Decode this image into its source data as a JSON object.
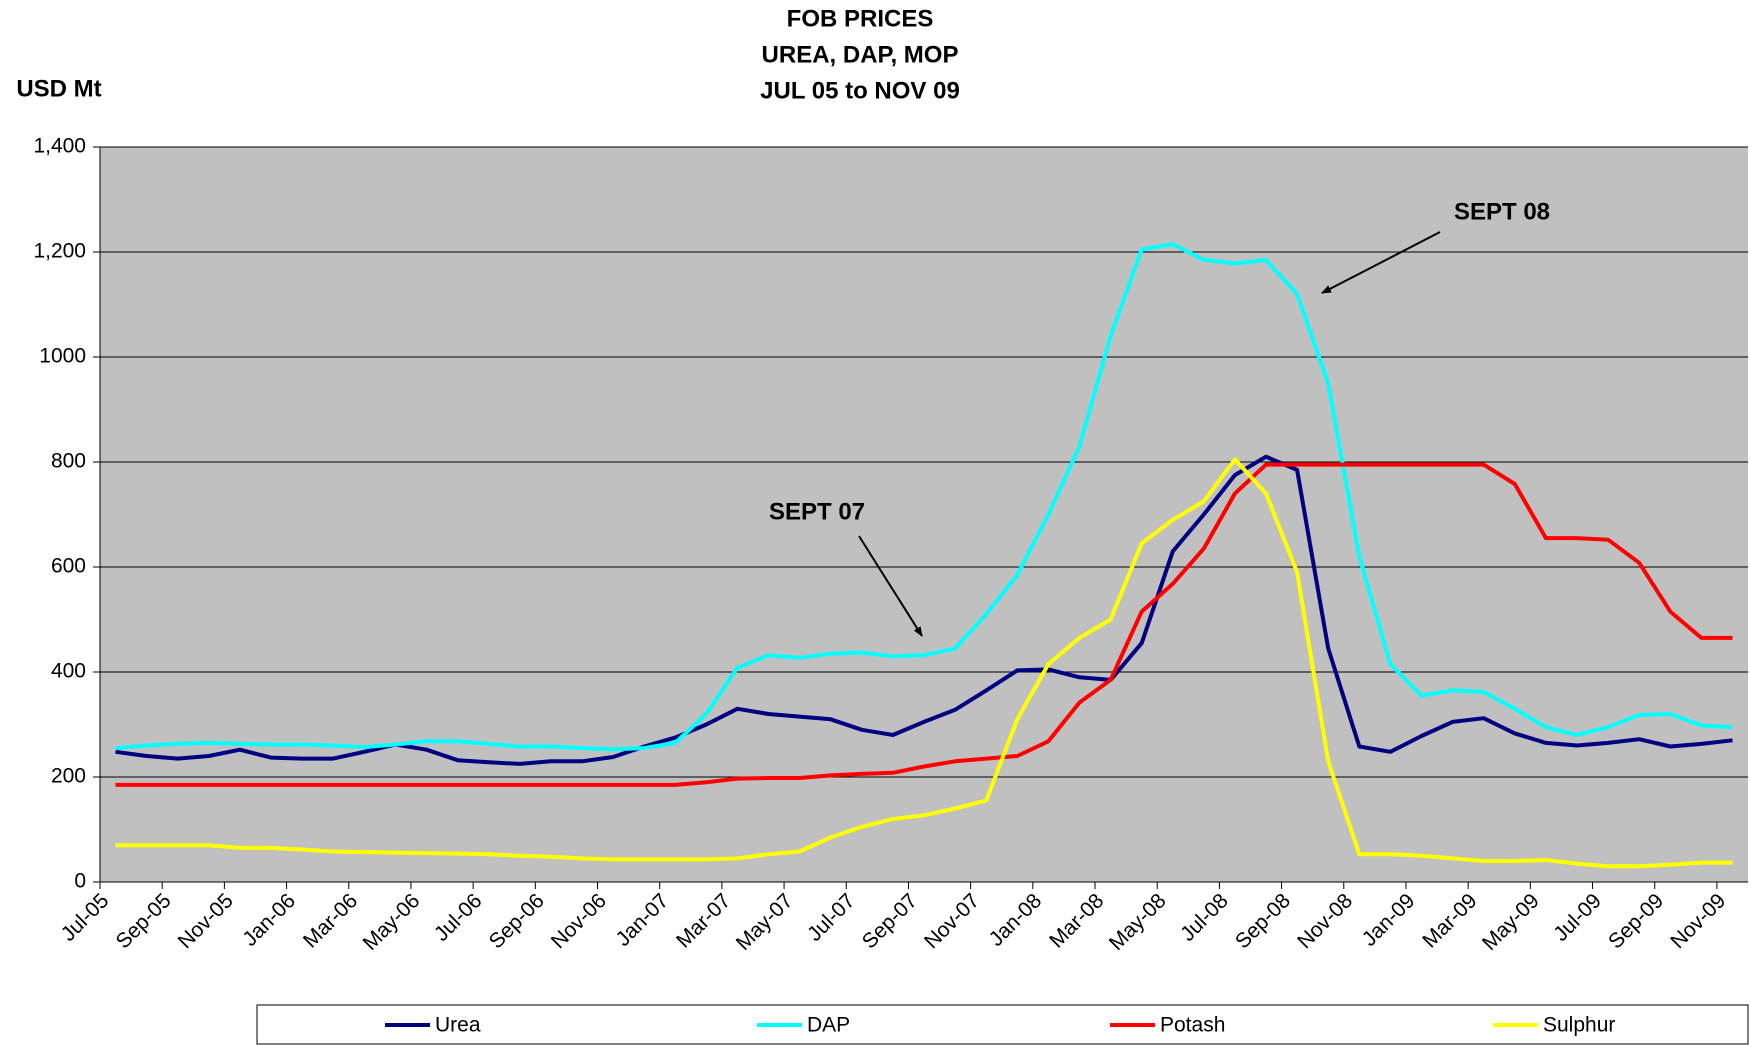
{
  "chart_data": {
    "type": "line",
    "title": [
      "FOB PRICES",
      "UREA, DAP, MOP",
      "JUL 05 to NOV 09"
    ],
    "y_label": "USD Mt",
    "annotations": [
      "SEPT 08",
      "SEPT 07"
    ],
    "categories": [
      "Jul-05",
      null,
      "Sep-05",
      null,
      "Nov-05",
      null,
      "Jan-06",
      null,
      "Mar-06",
      null,
      "May-06",
      null,
      "Jul-06",
      null,
      "Sep-06",
      null,
      "Nov-06",
      null,
      "Jan-07",
      null,
      "Mar-07",
      null,
      "May-07",
      null,
      "Jul-07",
      null,
      "Sep-07",
      null,
      "Nov-07",
      null,
      "Jan-08",
      null,
      "Mar-08",
      null,
      "May-08",
      null,
      "Jul-08",
      null,
      "Sep-08",
      null,
      "Nov-08",
      null,
      "Jan-09",
      null,
      "Mar-09",
      null,
      "May-09",
      null,
      "Jul-09",
      null,
      "Sep-09",
      null,
      "Nov-09"
    ],
    "series": [
      {
        "name": "Urea",
        "color": "#000080",
        "values": [
          248,
          240,
          235,
          240,
          252,
          237,
          235,
          235,
          248,
          262,
          252,
          232,
          228,
          225,
          230,
          230,
          238,
          258,
          275,
          300,
          330,
          320,
          315,
          310,
          290,
          280,
          305,
          328,
          365,
          403,
          405,
          390,
          385,
          455,
          630,
          700,
          775,
          810,
          785,
          445,
          258,
          248,
          278,
          305,
          312,
          283,
          265,
          260,
          265,
          272,
          258,
          263,
          270
        ]
      },
      {
        "name": "DAP",
        "color": "#00ffff",
        "values": [
          255,
          260,
          263,
          265,
          263,
          262,
          262,
          260,
          257,
          262,
          268,
          268,
          263,
          258,
          258,
          255,
          253,
          255,
          265,
          320,
          408,
          432,
          427,
          435,
          437,
          430,
          432,
          445,
          510,
          585,
          700,
          830,
          1040,
          1205,
          1215,
          1185,
          1178,
          1185,
          1120,
          950,
          620,
          415,
          355,
          365,
          362,
          330,
          295,
          280,
          295,
          318,
          320,
          298,
          295
        ]
      },
      {
        "name": "Potash",
        "color": "#ff0000",
        "values": [
          185,
          185,
          185,
          185,
          185,
          185,
          185,
          185,
          185,
          185,
          185,
          185,
          185,
          185,
          185,
          185,
          185,
          185,
          185,
          190,
          197,
          198,
          198,
          203,
          206,
          208,
          220,
          230,
          235,
          240,
          268,
          342,
          385,
          515,
          568,
          635,
          740,
          795,
          795,
          795,
          795,
          795,
          795,
          795,
          795,
          758,
          655,
          655,
          652,
          608,
          515,
          465,
          465
        ]
      },
      {
        "name": "Sulphur",
        "color": "#ffff00",
        "values": [
          70,
          70,
          70,
          70,
          65,
          65,
          62,
          58,
          57,
          56,
          55,
          54,
          53,
          50,
          48,
          45,
          43,
          43,
          43,
          43,
          45,
          53,
          58,
          85,
          105,
          120,
          127,
          140,
          155,
          310,
          415,
          465,
          500,
          645,
          690,
          725,
          805,
          740,
          590,
          230,
          53,
          53,
          50,
          45,
          40,
          40,
          42,
          35,
          30,
          30,
          33,
          37,
          37
        ]
      }
    ],
    "ylim": [
      0,
      1400
    ],
    "yticks": [
      0,
      200,
      400,
      600,
      800,
      1000,
      {
        "value": 1200,
        "label": "1,200"
      },
      {
        "value": 1400,
        "label": "1,400"
      }
    ],
    "grid": true,
    "legend": "bottom",
    "plot_background": "#c0c0c0"
  }
}
